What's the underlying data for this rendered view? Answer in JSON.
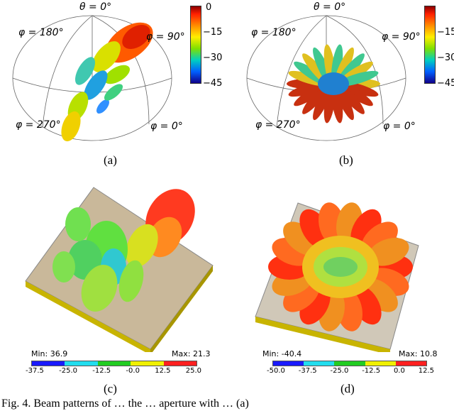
{
  "panel_a": {
    "theta_label": "θ = 0°",
    "phi_180": "φ = 180°",
    "phi_90": "φ = 90°",
    "phi_270": "φ = 270°",
    "phi_0": "φ = 0°",
    "colorbar_ticks": [
      "0",
      "−15",
      "−30",
      "−45"
    ],
    "caption": "(a)"
  },
  "panel_b": {
    "theta_label": "θ = 0°",
    "phi_180": "φ = 180°",
    "phi_90": "φ = 90°",
    "phi_270": "φ = 270°",
    "phi_0": "φ = 0°",
    "colorbar_ticks": [
      "−15",
      "−30",
      "−45"
    ],
    "caption": "(b)"
  },
  "panel_c": {
    "min_label": "Min: 36.9",
    "max_label": "Max: 21.3",
    "legend_ticks": [
      "-37.5",
      "-25.0",
      "-12.5",
      "-0.0",
      "12.5",
      "25.0"
    ],
    "legend_colors": [
      "#1a1aff",
      "#22ddee",
      "#22cc22",
      "#f0f000",
      "#ff2020"
    ],
    "caption": "(c)"
  },
  "panel_d": {
    "min_label": "Min: -40.4",
    "max_label": "Max: 10.8",
    "legend_ticks": [
      "-50.0",
      "-37.5",
      "-25.0",
      "-12.5",
      "0.0",
      "12.5"
    ],
    "legend_colors": [
      "#1a1aff",
      "#22ddee",
      "#22cc22",
      "#f0f000",
      "#ff2020"
    ],
    "caption": "(d)"
  },
  "footer_text": "Fig. 4.   Beam patterns of … the … aperture with … (a)"
}
